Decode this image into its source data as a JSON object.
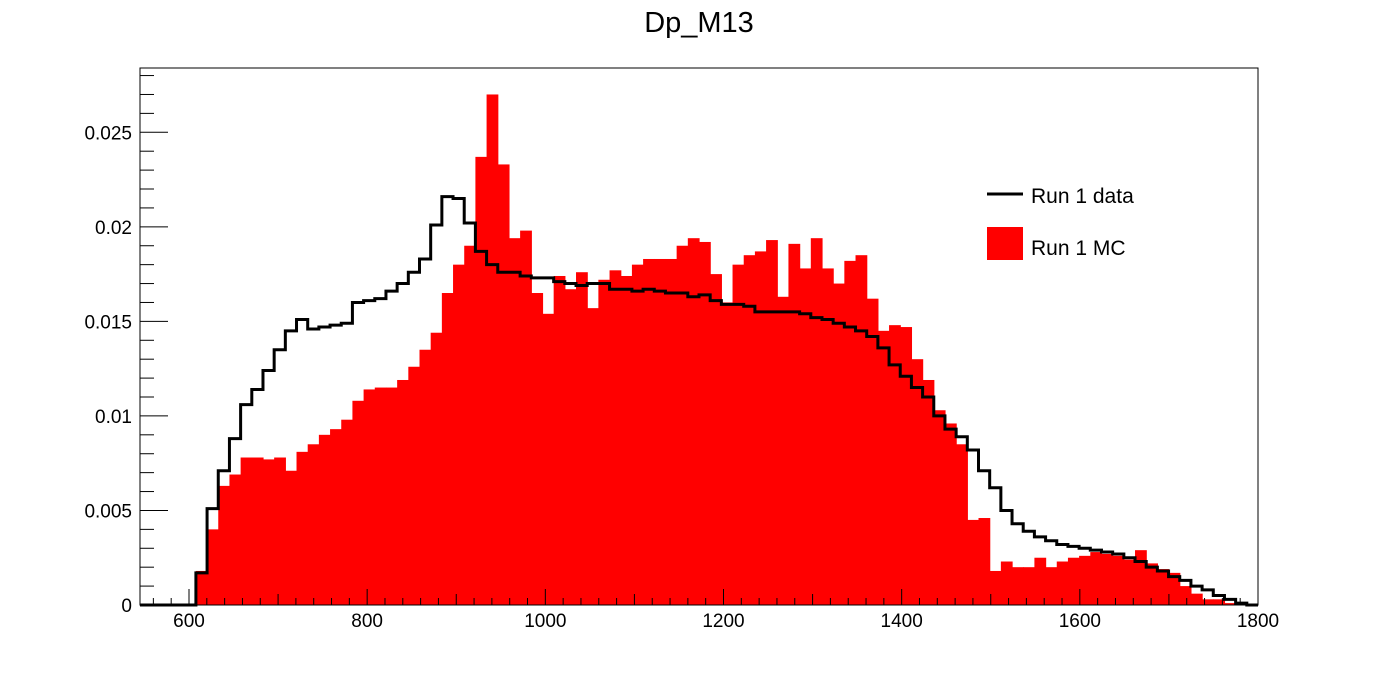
{
  "chart_data": {
    "type": "bar",
    "title": "Dp_M13",
    "xlabel": "",
    "ylabel": "",
    "xlim": [
      545,
      1800
    ],
    "ylim": [
      0,
      0.0284
    ],
    "bin_edges_start": 545,
    "bin_width": 12.55,
    "grid": false,
    "legend_position": "top-right",
    "x_ticks": [
      {
        "value": 600,
        "label": "600"
      },
      {
        "value": 800,
        "label": "800"
      },
      {
        "value": 1000,
        "label": "1000"
      },
      {
        "value": 1200,
        "label": "1200"
      },
      {
        "value": 1400,
        "label": "1400"
      },
      {
        "value": 1600,
        "label": "1600"
      },
      {
        "value": 1800,
        "label": "1800"
      }
    ],
    "y_ticks": [
      {
        "value": 0,
        "label": "0"
      },
      {
        "value": 0.005,
        "label": "0.005"
      },
      {
        "value": 0.01,
        "label": "0.01"
      },
      {
        "value": 0.015,
        "label": "0.015"
      },
      {
        "value": 0.02,
        "label": "0.02"
      },
      {
        "value": 0.025,
        "label": "0.025"
      }
    ],
    "series": [
      {
        "name": "Run 1 MC",
        "style": "filled",
        "color": "#ff0000",
        "values": [
          0,
          0,
          0,
          0,
          0,
          0.0018,
          0.004,
          0.0063,
          0.0069,
          0.0078,
          0.0078,
          0.0077,
          0.0078,
          0.0071,
          0.0081,
          0.0085,
          0.009,
          0.0093,
          0.0098,
          0.0108,
          0.0114,
          0.0115,
          0.0115,
          0.0119,
          0.0126,
          0.0135,
          0.0144,
          0.0165,
          0.018,
          0.019,
          0.0237,
          0.027,
          0.0233,
          0.0194,
          0.0198,
          0.0165,
          0.0154,
          0.0174,
          0.0167,
          0.0176,
          0.0157,
          0.0172,
          0.0177,
          0.0174,
          0.018,
          0.0183,
          0.0183,
          0.0183,
          0.019,
          0.0194,
          0.0192,
          0.0175,
          0.016,
          0.018,
          0.0185,
          0.0187,
          0.0193,
          0.0163,
          0.0191,
          0.0178,
          0.0194,
          0.0178,
          0.017,
          0.0182,
          0.0185,
          0.0162,
          0.0145,
          0.0148,
          0.0147,
          0.013,
          0.0119,
          0.0103,
          0.0096,
          0.0085,
          0.0045,
          0.0046,
          0.0018,
          0.0023,
          0.002,
          0.002,
          0.0025,
          0.002,
          0.0023,
          0.0025,
          0.0026,
          0.0028,
          0.0027,
          0.0026,
          0.0024,
          0.0029,
          0.0022,
          0.0019,
          0.0017,
          0.001,
          0.0006,
          0.0003,
          0.0003,
          0.0001,
          0,
          0
        ]
      },
      {
        "name": "Run 1 data",
        "style": "line",
        "color": "#000000",
        "values": [
          0,
          0,
          0,
          0,
          0,
          0.0017,
          0.0051,
          0.0071,
          0.0088,
          0.0106,
          0.0114,
          0.0124,
          0.0135,
          0.0145,
          0.0151,
          0.0146,
          0.0147,
          0.0148,
          0.0149,
          0.016,
          0.0161,
          0.0162,
          0.0166,
          0.017,
          0.0176,
          0.0183,
          0.0201,
          0.0216,
          0.0215,
          0.0202,
          0.0187,
          0.018,
          0.0176,
          0.0176,
          0.0174,
          0.0173,
          0.0173,
          0.0171,
          0.017,
          0.0169,
          0.017,
          0.017,
          0.0167,
          0.0167,
          0.0166,
          0.0167,
          0.0166,
          0.0165,
          0.0165,
          0.0163,
          0.0164,
          0.0161,
          0.0159,
          0.0159,
          0.0158,
          0.0155,
          0.0155,
          0.0155,
          0.0155,
          0.0154,
          0.0152,
          0.0151,
          0.0149,
          0.0147,
          0.0145,
          0.0142,
          0.0136,
          0.0127,
          0.0121,
          0.0115,
          0.011,
          0.01,
          0.0093,
          0.0089,
          0.0082,
          0.0071,
          0.0062,
          0.005,
          0.0043,
          0.0039,
          0.0036,
          0.0034,
          0.0032,
          0.0031,
          0.003,
          0.0029,
          0.0028,
          0.0027,
          0.0025,
          0.0023,
          0.002,
          0.0018,
          0.0015,
          0.0013,
          0.001,
          0.0008,
          0.0005,
          0.0003,
          0.0001,
          0
        ]
      }
    ]
  }
}
